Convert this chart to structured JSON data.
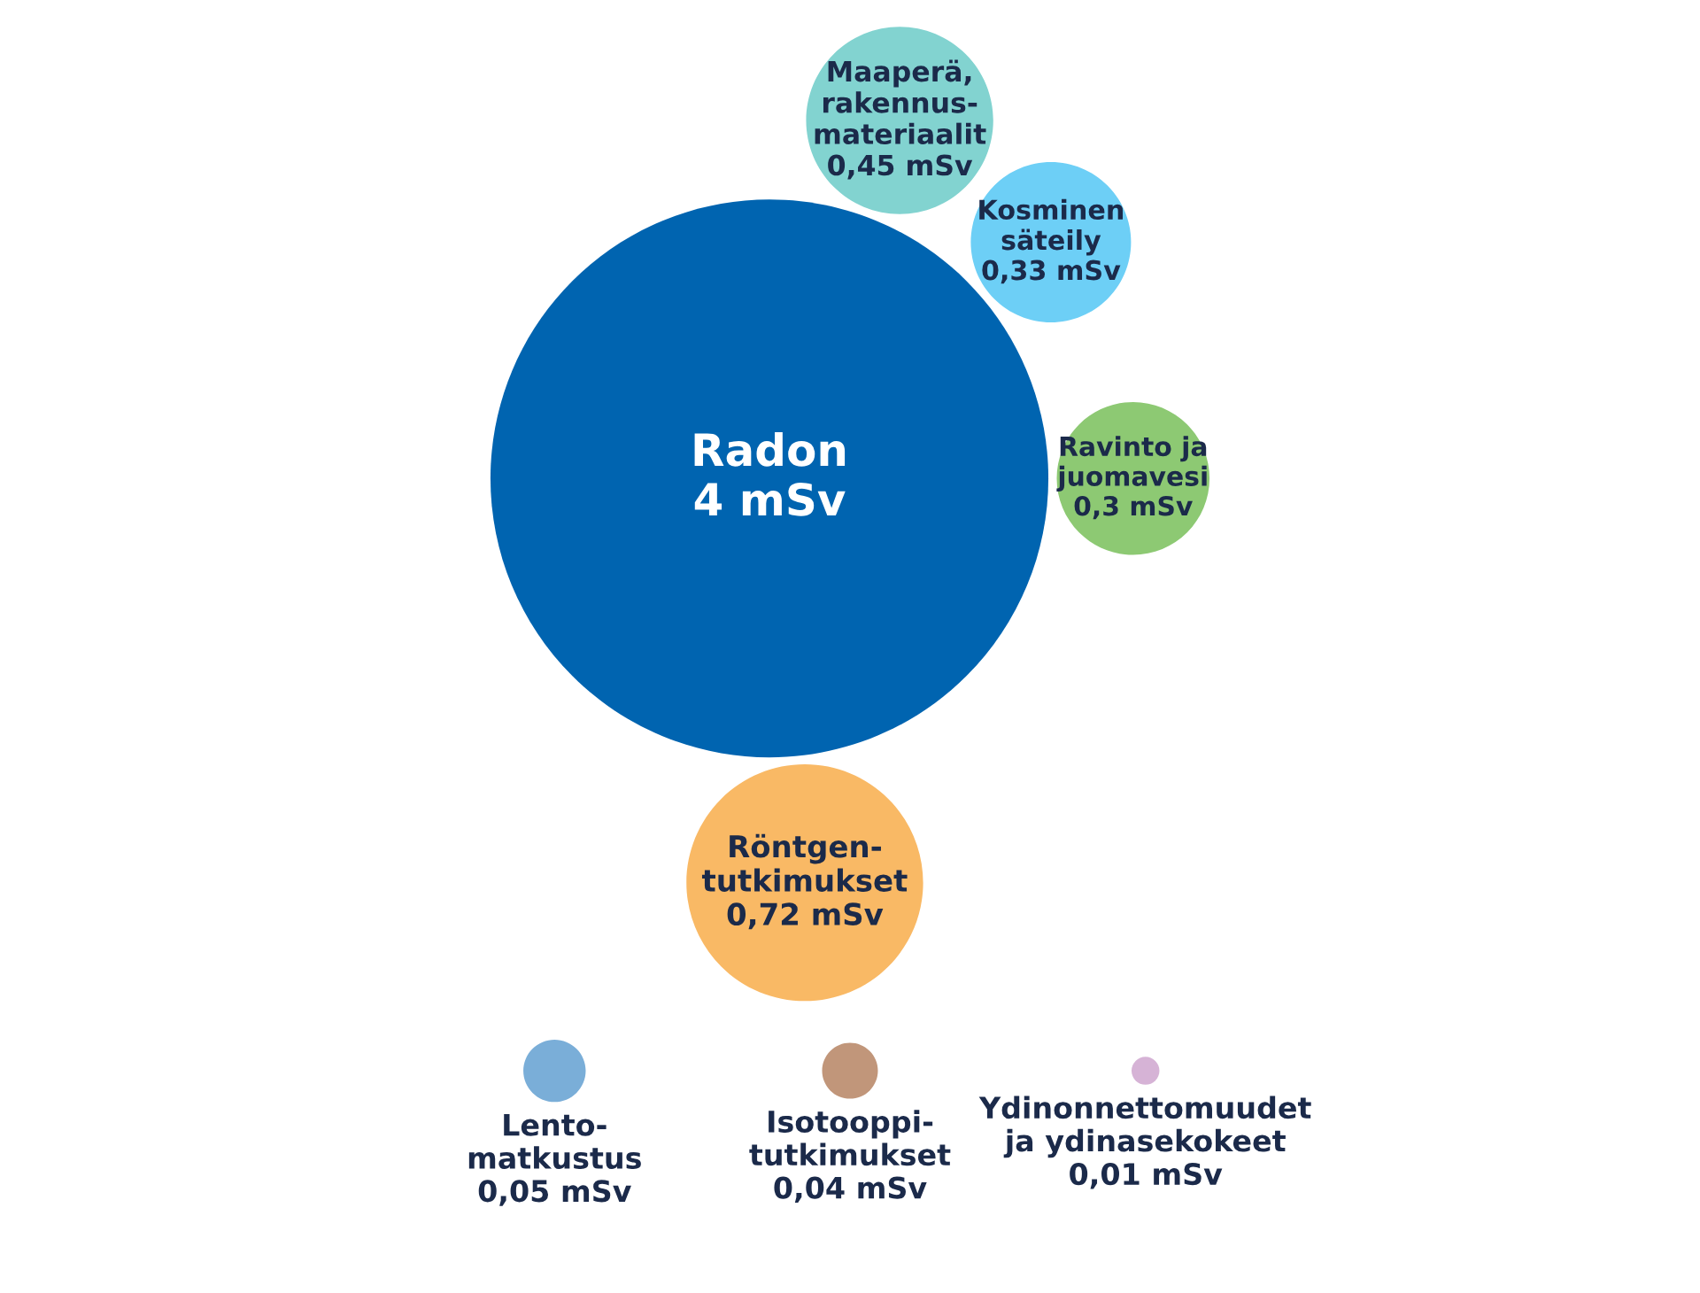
{
  "chart_data": {
    "type": "other",
    "categories": [
      "Radon",
      "Kosminen\nsäteily",
      "Ravinto ja\njuomavesi",
      "Lento-\nmatkustus",
      "Maaperä,\nrakennus-\nmateriaalit",
      "Röntgen-\ntutkimukset",
      "Isotooppi-\ntutkimukset",
      "Ydinonnettomuudet\nja ydinasekokeet"
    ],
    "values": [
      4,
      0.33,
      0.3,
      0.05,
      0.45,
      0.72,
      0.04,
      0.01
    ],
    "value_labels": [
      "4 mSv",
      "0,33 mSv",
      "0,3 mSv",
      "0,05 mSv",
      "0,45 mSv",
      "0,72 mSv",
      "0,04 mSv",
      "0,01 mSv"
    ],
    "colors": [
      "#0064b0",
      "#6dcff6",
      "#8dc973",
      "#7aaed8",
      "#82d3d0",
      "#f9b965",
      "#c1967a",
      "#d6b3d6"
    ]
  }
}
